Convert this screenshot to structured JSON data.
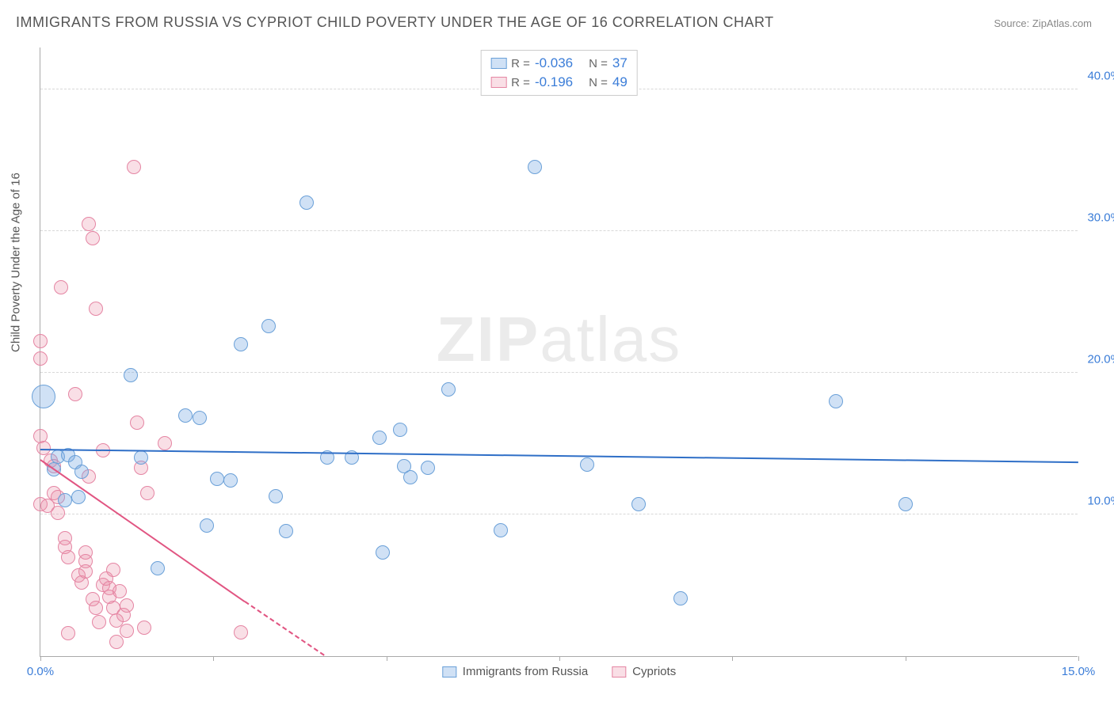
{
  "title": "IMMIGRANTS FROM RUSSIA VS CYPRIOT CHILD POVERTY UNDER THE AGE OF 16 CORRELATION CHART",
  "source_label": "Source: ZipAtlas.com",
  "y_axis_title": "Child Poverty Under the Age of 16",
  "watermark": {
    "bold": "ZIP",
    "rest": "atlas"
  },
  "chart": {
    "type": "scatter",
    "background_color": "#ffffff",
    "grid_color": "#d8d8d8",
    "axis_color": "#aaaaaa",
    "xlim": [
      0,
      15
    ],
    "ylim": [
      0,
      43
    ],
    "x_ticks": [
      0,
      2.5,
      5,
      7.5,
      10,
      12.5,
      15
    ],
    "x_tick_labels": {
      "0": "0.0%",
      "15": "15.0%"
    },
    "y_ticks": [
      10,
      20,
      30,
      40
    ],
    "y_tick_labels": {
      "10": "10.0%",
      "20": "20.0%",
      "30": "30.0%",
      "40": "40.0%"
    },
    "y_label_color": "#3b7dd8",
    "x_label_color": "#3b7dd8",
    "marker_radius": 9,
    "marker_stroke_width": 1.5,
    "series": [
      {
        "name": "Immigrants from Russia",
        "fill_color": "rgba(120,170,225,0.35)",
        "stroke_color": "#6aa0d8",
        "trend_color": "#2f6fc7",
        "trend_line_width": 2,
        "r_value": "-0.036",
        "n_value": "37",
        "trend": {
          "x1": 0.0,
          "y1": 14.5,
          "x2": 15.0,
          "y2": 13.6
        },
        "points": [
          {
            "x": 0.05,
            "y": 18.3,
            "r": 15
          },
          {
            "x": 0.25,
            "y": 14.1
          },
          {
            "x": 0.35,
            "y": 11.0
          },
          {
            "x": 0.4,
            "y": 14.2
          },
          {
            "x": 0.5,
            "y": 13.7
          },
          {
            "x": 0.55,
            "y": 11.2
          },
          {
            "x": 1.3,
            "y": 19.8
          },
          {
            "x": 1.45,
            "y": 14.0
          },
          {
            "x": 1.7,
            "y": 6.2
          },
          {
            "x": 2.1,
            "y": 17.0
          },
          {
            "x": 2.3,
            "y": 16.8
          },
          {
            "x": 2.55,
            "y": 12.5
          },
          {
            "x": 2.75,
            "y": 12.4
          },
          {
            "x": 2.4,
            "y": 9.2
          },
          {
            "x": 2.9,
            "y": 22.0
          },
          {
            "x": 3.3,
            "y": 23.3
          },
          {
            "x": 3.4,
            "y": 11.3
          },
          {
            "x": 3.55,
            "y": 8.8
          },
          {
            "x": 3.85,
            "y": 32.0
          },
          {
            "x": 4.15,
            "y": 14.0
          },
          {
            "x": 4.5,
            "y": 14.0
          },
          {
            "x": 4.9,
            "y": 15.4
          },
          {
            "x": 4.95,
            "y": 7.3
          },
          {
            "x": 5.2,
            "y": 16.0
          },
          {
            "x": 5.25,
            "y": 13.4
          },
          {
            "x": 5.35,
            "y": 12.6
          },
          {
            "x": 5.6,
            "y": 13.3
          },
          {
            "x": 5.9,
            "y": 18.8
          },
          {
            "x": 6.65,
            "y": 8.9
          },
          {
            "x": 7.15,
            "y": 34.5
          },
          {
            "x": 7.9,
            "y": 13.5
          },
          {
            "x": 8.65,
            "y": 10.7
          },
          {
            "x": 9.25,
            "y": 4.1
          },
          {
            "x": 11.5,
            "y": 18.0
          },
          {
            "x": 12.5,
            "y": 10.7
          },
          {
            "x": 0.2,
            "y": 13.2
          },
          {
            "x": 0.6,
            "y": 13.0
          }
        ]
      },
      {
        "name": "Cypriots",
        "fill_color": "rgba(235,140,165,0.28)",
        "stroke_color": "#e585a3",
        "trend_color": "#e15582",
        "trend_line_width": 2,
        "r_value": "-0.196",
        "n_value": "49",
        "trend": {
          "x1": 0.0,
          "y1": 13.8,
          "x2": 4.1,
          "y2": 0.0
        },
        "trend_dash": {
          "x1": 2.95,
          "y1": 3.8,
          "x2": 4.1,
          "y2": 0.0
        },
        "points": [
          {
            "x": 0.0,
            "y": 22.2
          },
          {
            "x": 0.0,
            "y": 21.0
          },
          {
            "x": 0.0,
            "y": 15.5
          },
          {
            "x": 0.05,
            "y": 14.7
          },
          {
            "x": 0.0,
            "y": 10.7
          },
          {
            "x": 0.1,
            "y": 10.6
          },
          {
            "x": 0.15,
            "y": 13.8
          },
          {
            "x": 0.2,
            "y": 13.4
          },
          {
            "x": 0.2,
            "y": 11.5
          },
          {
            "x": 0.25,
            "y": 11.2
          },
          {
            "x": 0.25,
            "y": 10.1
          },
          {
            "x": 0.3,
            "y": 26.0
          },
          {
            "x": 0.35,
            "y": 8.3
          },
          {
            "x": 0.35,
            "y": 7.7
          },
          {
            "x": 0.4,
            "y": 7.0
          },
          {
            "x": 0.4,
            "y": 1.6
          },
          {
            "x": 0.5,
            "y": 18.5
          },
          {
            "x": 0.55,
            "y": 5.7
          },
          {
            "x": 0.6,
            "y": 5.2
          },
          {
            "x": 0.65,
            "y": 7.3
          },
          {
            "x": 0.65,
            "y": 6.7
          },
          {
            "x": 0.65,
            "y": 6.0
          },
          {
            "x": 0.7,
            "y": 30.5
          },
          {
            "x": 0.7,
            "y": 12.7
          },
          {
            "x": 0.75,
            "y": 29.5
          },
          {
            "x": 0.75,
            "y": 4.0
          },
          {
            "x": 0.8,
            "y": 24.5
          },
          {
            "x": 0.8,
            "y": 3.4
          },
          {
            "x": 0.85,
            "y": 2.4
          },
          {
            "x": 0.9,
            "y": 14.5
          },
          {
            "x": 0.9,
            "y": 5.0
          },
          {
            "x": 0.95,
            "y": 5.5
          },
          {
            "x": 1.0,
            "y": 4.8
          },
          {
            "x": 1.0,
            "y": 4.2
          },
          {
            "x": 1.05,
            "y": 3.4
          },
          {
            "x": 1.05,
            "y": 6.1
          },
          {
            "x": 1.1,
            "y": 1.0
          },
          {
            "x": 1.1,
            "y": 2.5
          },
          {
            "x": 1.15,
            "y": 4.6
          },
          {
            "x": 1.2,
            "y": 2.9
          },
          {
            "x": 1.25,
            "y": 3.6
          },
          {
            "x": 1.25,
            "y": 1.8
          },
          {
            "x": 1.35,
            "y": 34.5
          },
          {
            "x": 1.4,
            "y": 16.5
          },
          {
            "x": 1.45,
            "y": 13.3
          },
          {
            "x": 1.55,
            "y": 11.5
          },
          {
            "x": 1.5,
            "y": 2.0
          },
          {
            "x": 1.8,
            "y": 15.0
          },
          {
            "x": 2.9,
            "y": 1.7
          }
        ]
      }
    ],
    "legend_bottom": [
      {
        "label": "Immigrants from Russia",
        "fill": "rgba(120,170,225,0.35)",
        "stroke": "#6aa0d8"
      },
      {
        "label": "Cypriots",
        "fill": "rgba(235,140,165,0.28)",
        "stroke": "#e585a3"
      }
    ]
  },
  "legend_top_labels": {
    "r": "R =",
    "n": "N ="
  }
}
